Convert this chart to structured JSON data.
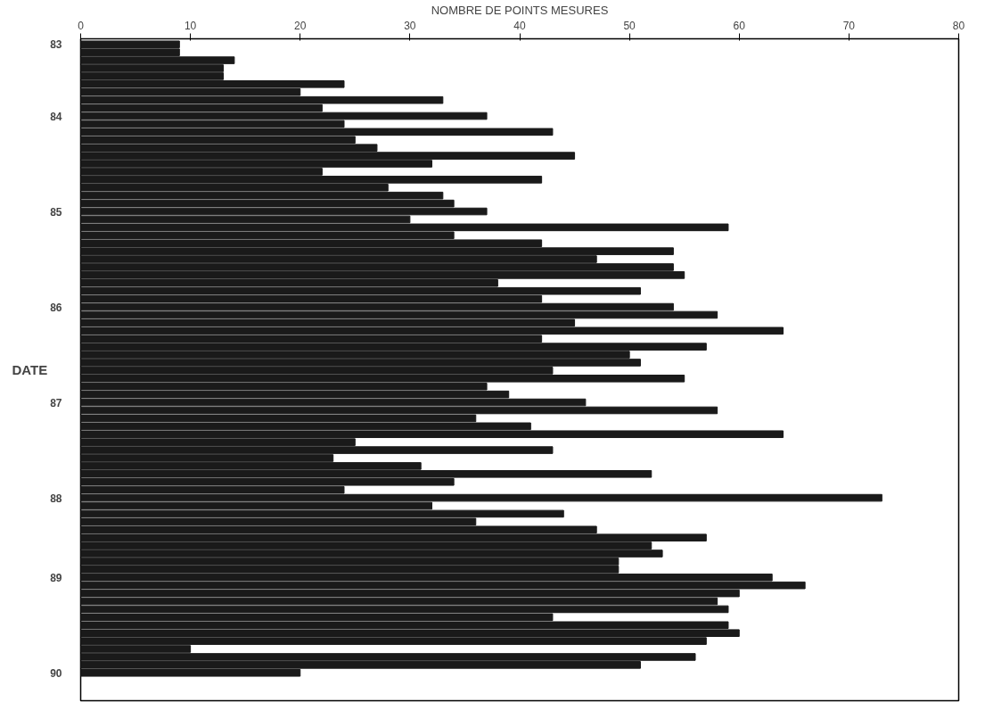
{
  "chart_data": {
    "type": "bar",
    "orientation": "horizontal",
    "xlabel": "NOMBRE DE POINTS MESURES",
    "ylabel": "DATE",
    "categories": [
      "83",
      null,
      null,
      null,
      null,
      null,
      null,
      null,
      null,
      "84",
      null,
      null,
      null,
      null,
      null,
      null,
      null,
      null,
      null,
      null,
      null,
      "85",
      null,
      null,
      null,
      null,
      null,
      null,
      null,
      null,
      null,
      null,
      null,
      "86",
      null,
      null,
      null,
      null,
      null,
      null,
      null,
      null,
      null,
      null,
      null,
      "87",
      null,
      null,
      null,
      null,
      null,
      null,
      null,
      null,
      null,
      null,
      null,
      "88",
      null,
      null,
      null,
      null,
      null,
      null,
      null,
      null,
      null,
      "89",
      null,
      null,
      null,
      null,
      null,
      null,
      null,
      null,
      null,
      null,
      null,
      "90"
    ],
    "values": [
      9,
      9,
      14,
      13,
      13,
      24,
      20,
      33,
      22,
      37,
      24,
      43,
      25,
      27,
      45,
      32,
      22,
      42,
      28,
      33,
      34,
      37,
      30,
      59,
      34,
      42,
      54,
      47,
      54,
      55,
      38,
      51,
      42,
      54,
      58,
      45,
      64,
      42,
      57,
      50,
      51,
      43,
      55,
      37,
      39,
      46,
      58,
      36,
      41,
      64,
      25,
      43,
      23,
      31,
      52,
      34,
      24,
      73,
      32,
      44,
      36,
      47,
      57,
      52,
      53,
      49,
      49,
      63,
      66,
      60,
      58,
      59,
      43,
      59,
      60,
      57,
      10,
      56,
      51,
      20
    ],
    "color": "#1a1a1a",
    "xlim": [
      0,
      80
    ],
    "xticks": [
      0,
      10,
      20,
      30,
      40,
      50,
      60,
      70,
      80
    ],
    "grid": false
  }
}
